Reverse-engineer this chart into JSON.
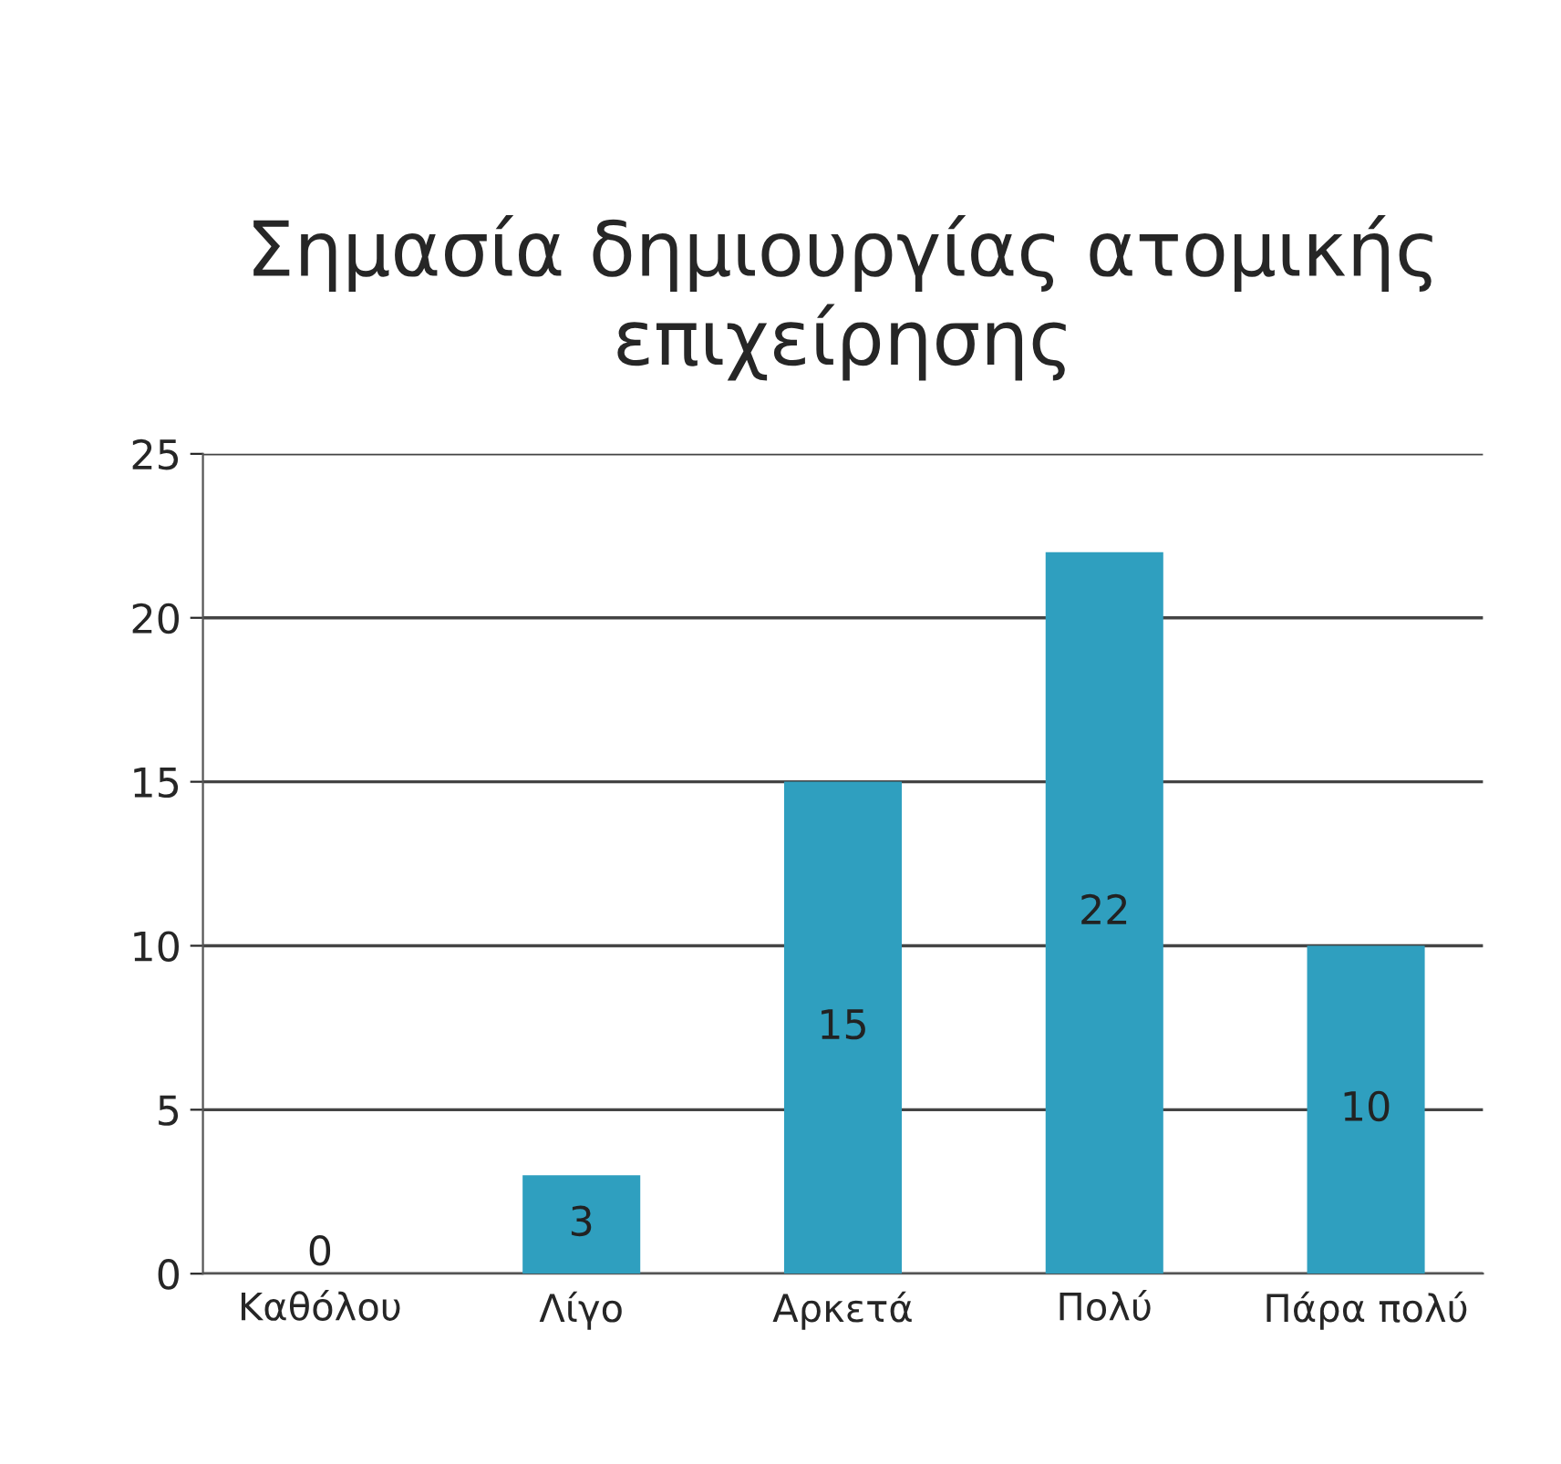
{
  "chart_data": {
    "type": "bar",
    "title": "Σημασία δημιουργίας ατομικής επιχείρησης",
    "categories": [
      "Καθόλου",
      "Λίγο",
      "Αρκετά",
      "Πολύ",
      "Πάρα πολύ"
    ],
    "values": [
      0,
      3,
      15,
      22,
      10
    ],
    "color": "#2f9fbf",
    "ylim": [
      0,
      25
    ],
    "yticks": [
      0,
      5,
      10,
      15,
      20,
      25
    ],
    "grid": "y",
    "data_labels": true
  }
}
